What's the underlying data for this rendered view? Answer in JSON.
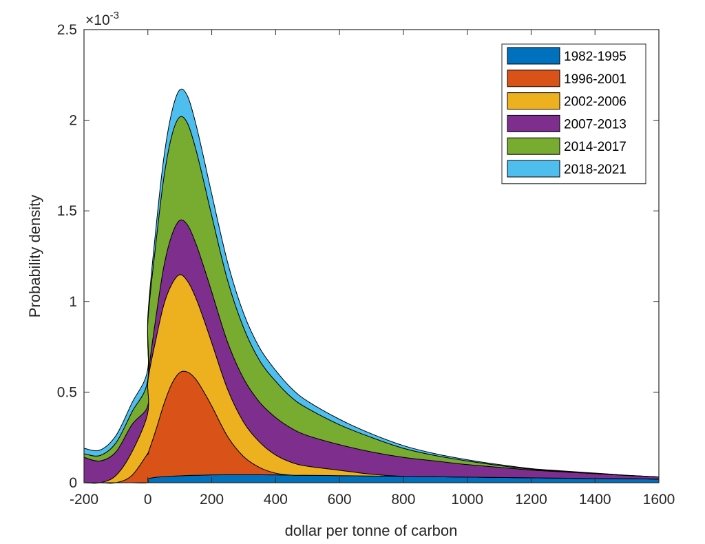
{
  "chart_data": {
    "type": "area",
    "stacked": true,
    "xlabel": "dollar per tonne of carbon",
    "ylabel": "Probability density",
    "xlim": [
      -200,
      1600
    ],
    "ylim": [
      0,
      0.0025
    ],
    "y_exponent_label": "×10",
    "y_exponent_power": "-3",
    "x_ticks": [
      -200,
      0,
      200,
      400,
      600,
      800,
      1000,
      1200,
      1400,
      1600
    ],
    "x_tick_labels": [
      "-200",
      "0",
      "200",
      "400",
      "600",
      "800",
      "1000",
      "1200",
      "1400",
      "1600"
    ],
    "y_ticks": [
      0,
      0.0005,
      0.001,
      0.0015,
      0.002,
      0.0025
    ],
    "y_tick_labels": [
      "0",
      "0.5",
      "1",
      "1.5",
      "2",
      "2.5"
    ],
    "grid": false,
    "legend_position": "top-right",
    "x": [
      -200,
      -150,
      -100,
      -50,
      -1,
      0,
      25,
      50,
      75,
      100,
      125,
      150,
      175,
      200,
      250,
      300,
      350,
      400,
      450,
      500,
      600,
      700,
      800,
      900,
      1000,
      1100,
      1200,
      1300,
      1400,
      1500,
      1600
    ],
    "series": [
      {
        "name": "1982-1995",
        "color": "#0072BD",
        "values": [
          0,
          0,
          0,
          0,
          0,
          2e-05,
          3e-05,
          3.3e-05,
          3.6e-05,
          3.8e-05,
          4e-05,
          4.1e-05,
          4.2e-05,
          4.3e-05,
          4.4e-05,
          4.4e-05,
          4.4e-05,
          4.3e-05,
          4.2e-05,
          4.1e-05,
          3.9e-05,
          3.7e-05,
          3.5e-05,
          3.3e-05,
          3.1e-05,
          2.9e-05,
          2.7e-05,
          2.5e-05,
          2.3e-05,
          2.2e-05,
          2e-05
        ]
      },
      {
        "name": "1996-2001",
        "color": "#D95319",
        "values": [
          0,
          0,
          0,
          4e-05,
          0.00016,
          0.00014,
          0.00026,
          0.0004,
          0.00051,
          0.00057,
          0.00057,
          0.00053,
          0.00046,
          0.00038,
          0.00021,
          0.0001,
          4e-05,
          1e-05,
          0,
          0,
          0,
          0,
          0,
          0,
          0,
          0,
          0,
          0,
          0,
          0,
          0
        ]
      },
      {
        "name": "2002-2006",
        "color": "#EDB120",
        "values": [
          0,
          0,
          4e-05,
          0.00013,
          0.00022,
          0.0004,
          0.0005,
          0.00055,
          0.00055,
          0.00054,
          0.0005,
          0.00045,
          0.0004,
          0.00035,
          0.00026,
          0.00019,
          0.00014,
          0.0001,
          7e-05,
          5e-05,
          3e-05,
          1e-05,
          0,
          0,
          0,
          0,
          0,
          0,
          0,
          0,
          0
        ]
      },
      {
        "name": "2007-2013",
        "color": "#7E2F8E",
        "values": [
          0.00014,
          0.00012,
          0.00013,
          0.00015,
          4e-05,
          2e-05,
          0.00012,
          0.00021,
          0.00027,
          0.0003,
          0.00031,
          0.0003,
          0.00029,
          0.00028,
          0.00026,
          0.00024,
          0.00022,
          0.000207,
          0.000188,
          0.000169,
          0.000141,
          0.000123,
          0.000105,
          8.7e-05,
          6.9e-05,
          5.6e-05,
          4.3e-05,
          3.5e-05,
          2.7e-05,
          1.8e-05,
          1.2e-05
        ]
      },
      {
        "name": "2014-2017",
        "color": "#77AC30",
        "values": [
          2e-05,
          3e-05,
          5e-05,
          7e-05,
          0.00014,
          0.00031,
          0.00041,
          0.00049,
          0.00055,
          0.00057,
          0.00056,
          0.00052,
          0.00047,
          0.00042,
          0.00034,
          0.00028,
          0.00023,
          0.0002,
          0.00017,
          0.00015,
          0.00011,
          8e-05,
          5e-05,
          3e-05,
          2e-05,
          1e-05,
          5e-06,
          3e-06,
          2e-06,
          1e-06,
          0
        ]
      },
      {
        "name": "2018-2021",
        "color": "#4DBEEE",
        "values": [
          3e-05,
          3e-05,
          4e-05,
          5e-05,
          6e-05,
          3e-05,
          8e-05,
          0.00011,
          0.00013,
          0.00015,
          0.00015,
          0.00014,
          0.00013,
          0.00012,
          0.0001,
          8e-05,
          7e-05,
          6e-05,
          5e-05,
          4e-05,
          3e-05,
          2e-05,
          1.5e-05,
          1e-05,
          7e-06,
          5e-06,
          3e-06,
          2e-06,
          1e-06,
          0,
          0
        ]
      }
    ]
  }
}
